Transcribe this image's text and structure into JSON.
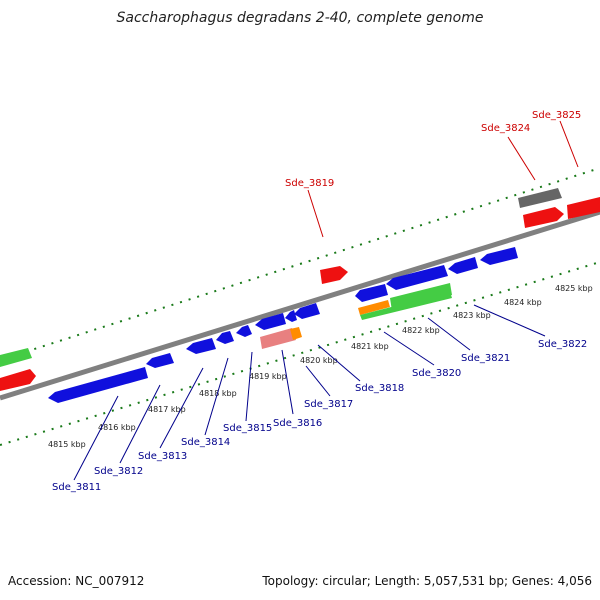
{
  "title": "Saccharophagus degradans 2-40, complete genome",
  "footer": {
    "accession": "Accession: NC_007912",
    "summary": "Topology: circular; Length: 5,057,531 bp; Genes: 4,056"
  },
  "kbp_labels": [
    "4815 kbp",
    "4816 kbp",
    "4817 kbp",
    "4818 kbp",
    "4819 kbp",
    "4820 kbp",
    "4821 kbp",
    "4822 kbp",
    "4823 kbp",
    "4824 kbp",
    "4825 kbp"
  ],
  "gene_labels": {
    "forward": [
      "Sde_3819",
      "Sde_3824",
      "Sde_3825"
    ],
    "reverse": [
      "Sde_3811",
      "Sde_3812",
      "Sde_3813",
      "Sde_3814",
      "Sde_3815",
      "Sde_3816",
      "Sde_3817",
      "Sde_3818",
      "Sde_3820",
      "Sde_3821",
      "Sde_3822"
    ]
  },
  "colors": {
    "backbone": "#808080",
    "tick": "#1a7a1a",
    "forward_label": "#cc0000",
    "reverse_label": "#00008b",
    "cds_blue": "#1010dd",
    "cds_red": "#ee1111",
    "cds_green": "#44cc44",
    "cds_gray": "#666666",
    "cds_orange": "#ff8c00",
    "cds_pink": "#e88080"
  }
}
